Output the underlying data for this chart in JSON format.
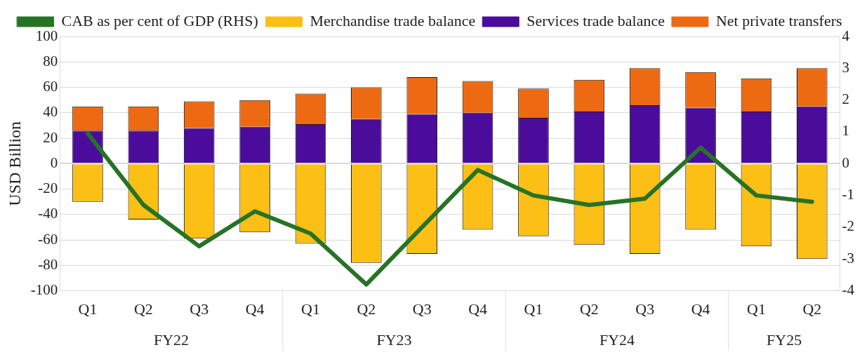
{
  "chart_data": {
    "type": "bar",
    "stacked": true,
    "ylabel": "USD Billion",
    "categories": [
      "Q1",
      "Q2",
      "Q3",
      "Q4",
      "Q1",
      "Q2",
      "Q3",
      "Q4",
      "Q1",
      "Q2",
      "Q3",
      "Q4",
      "Q1",
      "Q2"
    ],
    "annotations": [
      "FY22",
      "FY23",
      "FY24",
      "FY25"
    ],
    "series": [
      {
        "name": "Merchandise trade balance",
        "color": "#fbbf16",
        "values": [
          -30,
          -44,
          -59,
          -54,
          -63,
          -78,
          -71,
          -52,
          -57,
          -64,
          -71,
          -52,
          -65,
          -75
        ]
      },
      {
        "name": "Services trade balance",
        "color": "#4b0c9c",
        "values": [
          26,
          26,
          28,
          29,
          31,
          35,
          39,
          40,
          36,
          41,
          46,
          44,
          41,
          45
        ]
      },
      {
        "name": "Net private transfers",
        "color": "#ee6a12",
        "values": [
          19,
          19,
          21,
          21,
          24,
          25,
          29,
          25,
          23,
          25,
          29,
          28,
          26,
          30
        ]
      },
      {
        "name": "CAB as per cent of GDP (RHS)",
        "type": "line",
        "axis": "y2",
        "color": "#267326",
        "values": [
          0.95,
          -1.3,
          -2.6,
          -1.5,
          -2.2,
          -3.8,
          -2.0,
          -0.2,
          -1.0,
          -1.3,
          -1.1,
          0.5,
          -1.0,
          -1.2
        ]
      }
    ],
    "ylim": [
      -100,
      100
    ],
    "yticks": [
      -100,
      -80,
      -60,
      -40,
      -20,
      0,
      20,
      40,
      60,
      80,
      100
    ],
    "y2lim": [
      -4,
      4
    ],
    "y2ticks": [
      -4,
      -3,
      -2,
      -1,
      0,
      1,
      2,
      3,
      4
    ],
    "grid": "y",
    "legend": "top",
    "marker": "none",
    "line_style": "solid"
  }
}
